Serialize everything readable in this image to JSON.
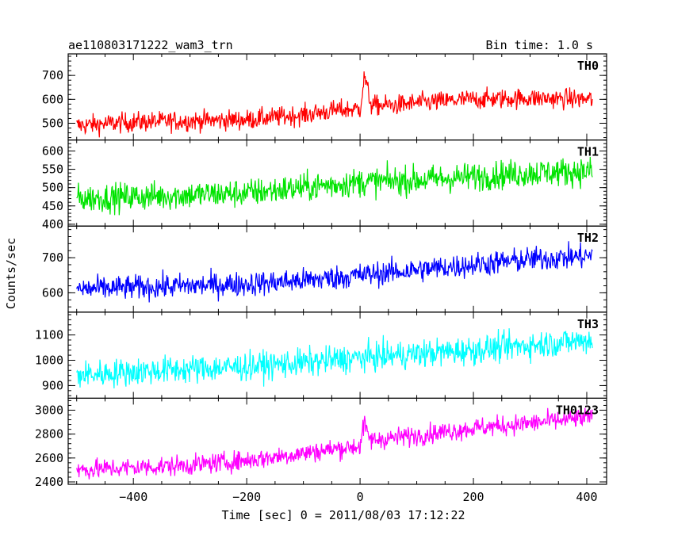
{
  "header": {
    "title": "ae110803171222_wam3_trn",
    "bin_time": "Bin time: 1.0 s"
  },
  "axes": {
    "xlabel": "Time [sec] 0 = 2011/08/03 17:12:22",
    "ylabel": "Counts/sec",
    "x_ticks": [
      "−400",
      "−200",
      "0",
      "200",
      "400"
    ]
  },
  "chart_data": [
    {
      "type": "line",
      "name": "TH0",
      "color": "#ff0000",
      "x": [
        -500,
        -400,
        -300,
        -200,
        -100,
        -40,
        0,
        8,
        12,
        20,
        60,
        100,
        200,
        300,
        410
      ],
      "y": [
        490,
        505,
        510,
        515,
        535,
        555,
        560,
        700,
        650,
        575,
        575,
        585,
        600,
        605,
        600
      ],
      "noise": 30,
      "ylim": [
        430,
        790
      ],
      "yticks": [
        500,
        600,
        700
      ]
    },
    {
      "type": "line",
      "name": "TH1",
      "color": "#00e400",
      "x": [
        -500,
        -400,
        -300,
        -200,
        -100,
        0,
        100,
        200,
        300,
        410
      ],
      "y": [
        470,
        475,
        480,
        485,
        500,
        515,
        520,
        530,
        540,
        545
      ],
      "noise": 28,
      "ylim": [
        395,
        630
      ],
      "yticks": [
        400,
        450,
        500,
        550,
        600
      ]
    },
    {
      "type": "line",
      "name": "TH2",
      "color": "#0000ff",
      "x": [
        -500,
        -400,
        -300,
        -200,
        -100,
        0,
        100,
        200,
        300,
        410
      ],
      "y": [
        610,
        615,
        620,
        625,
        635,
        650,
        665,
        680,
        695,
        705
      ],
      "noise": 25,
      "ylim": [
        545,
        790
      ],
      "yticks": [
        600,
        700
      ]
    },
    {
      "type": "line",
      "name": "TH3",
      "color": "#00ffff",
      "x": [
        -500,
        -400,
        -300,
        -200,
        -100,
        0,
        100,
        200,
        300,
        410
      ],
      "y": [
        940,
        955,
        965,
        975,
        990,
        1010,
        1025,
        1040,
        1060,
        1080
      ],
      "noise": 40,
      "ylim": [
        850,
        1190
      ],
      "yticks": [
        900,
        1000,
        1100
      ]
    },
    {
      "type": "line",
      "name": "TH0123",
      "color": "#ff00ff",
      "x": [
        -500,
        -400,
        -300,
        -200,
        -100,
        -40,
        0,
        8,
        12,
        20,
        60,
        100,
        200,
        300,
        410
      ],
      "y": [
        2500,
        2520,
        2540,
        2580,
        2640,
        2680,
        2700,
        2900,
        2800,
        2750,
        2770,
        2790,
        2850,
        2890,
        2940
      ],
      "noise": 60,
      "ylim": [
        2380,
        3100
      ],
      "yticks": [
        2400,
        2600,
        2800,
        3000
      ]
    }
  ],
  "x_range": [
    -515,
    435
  ]
}
